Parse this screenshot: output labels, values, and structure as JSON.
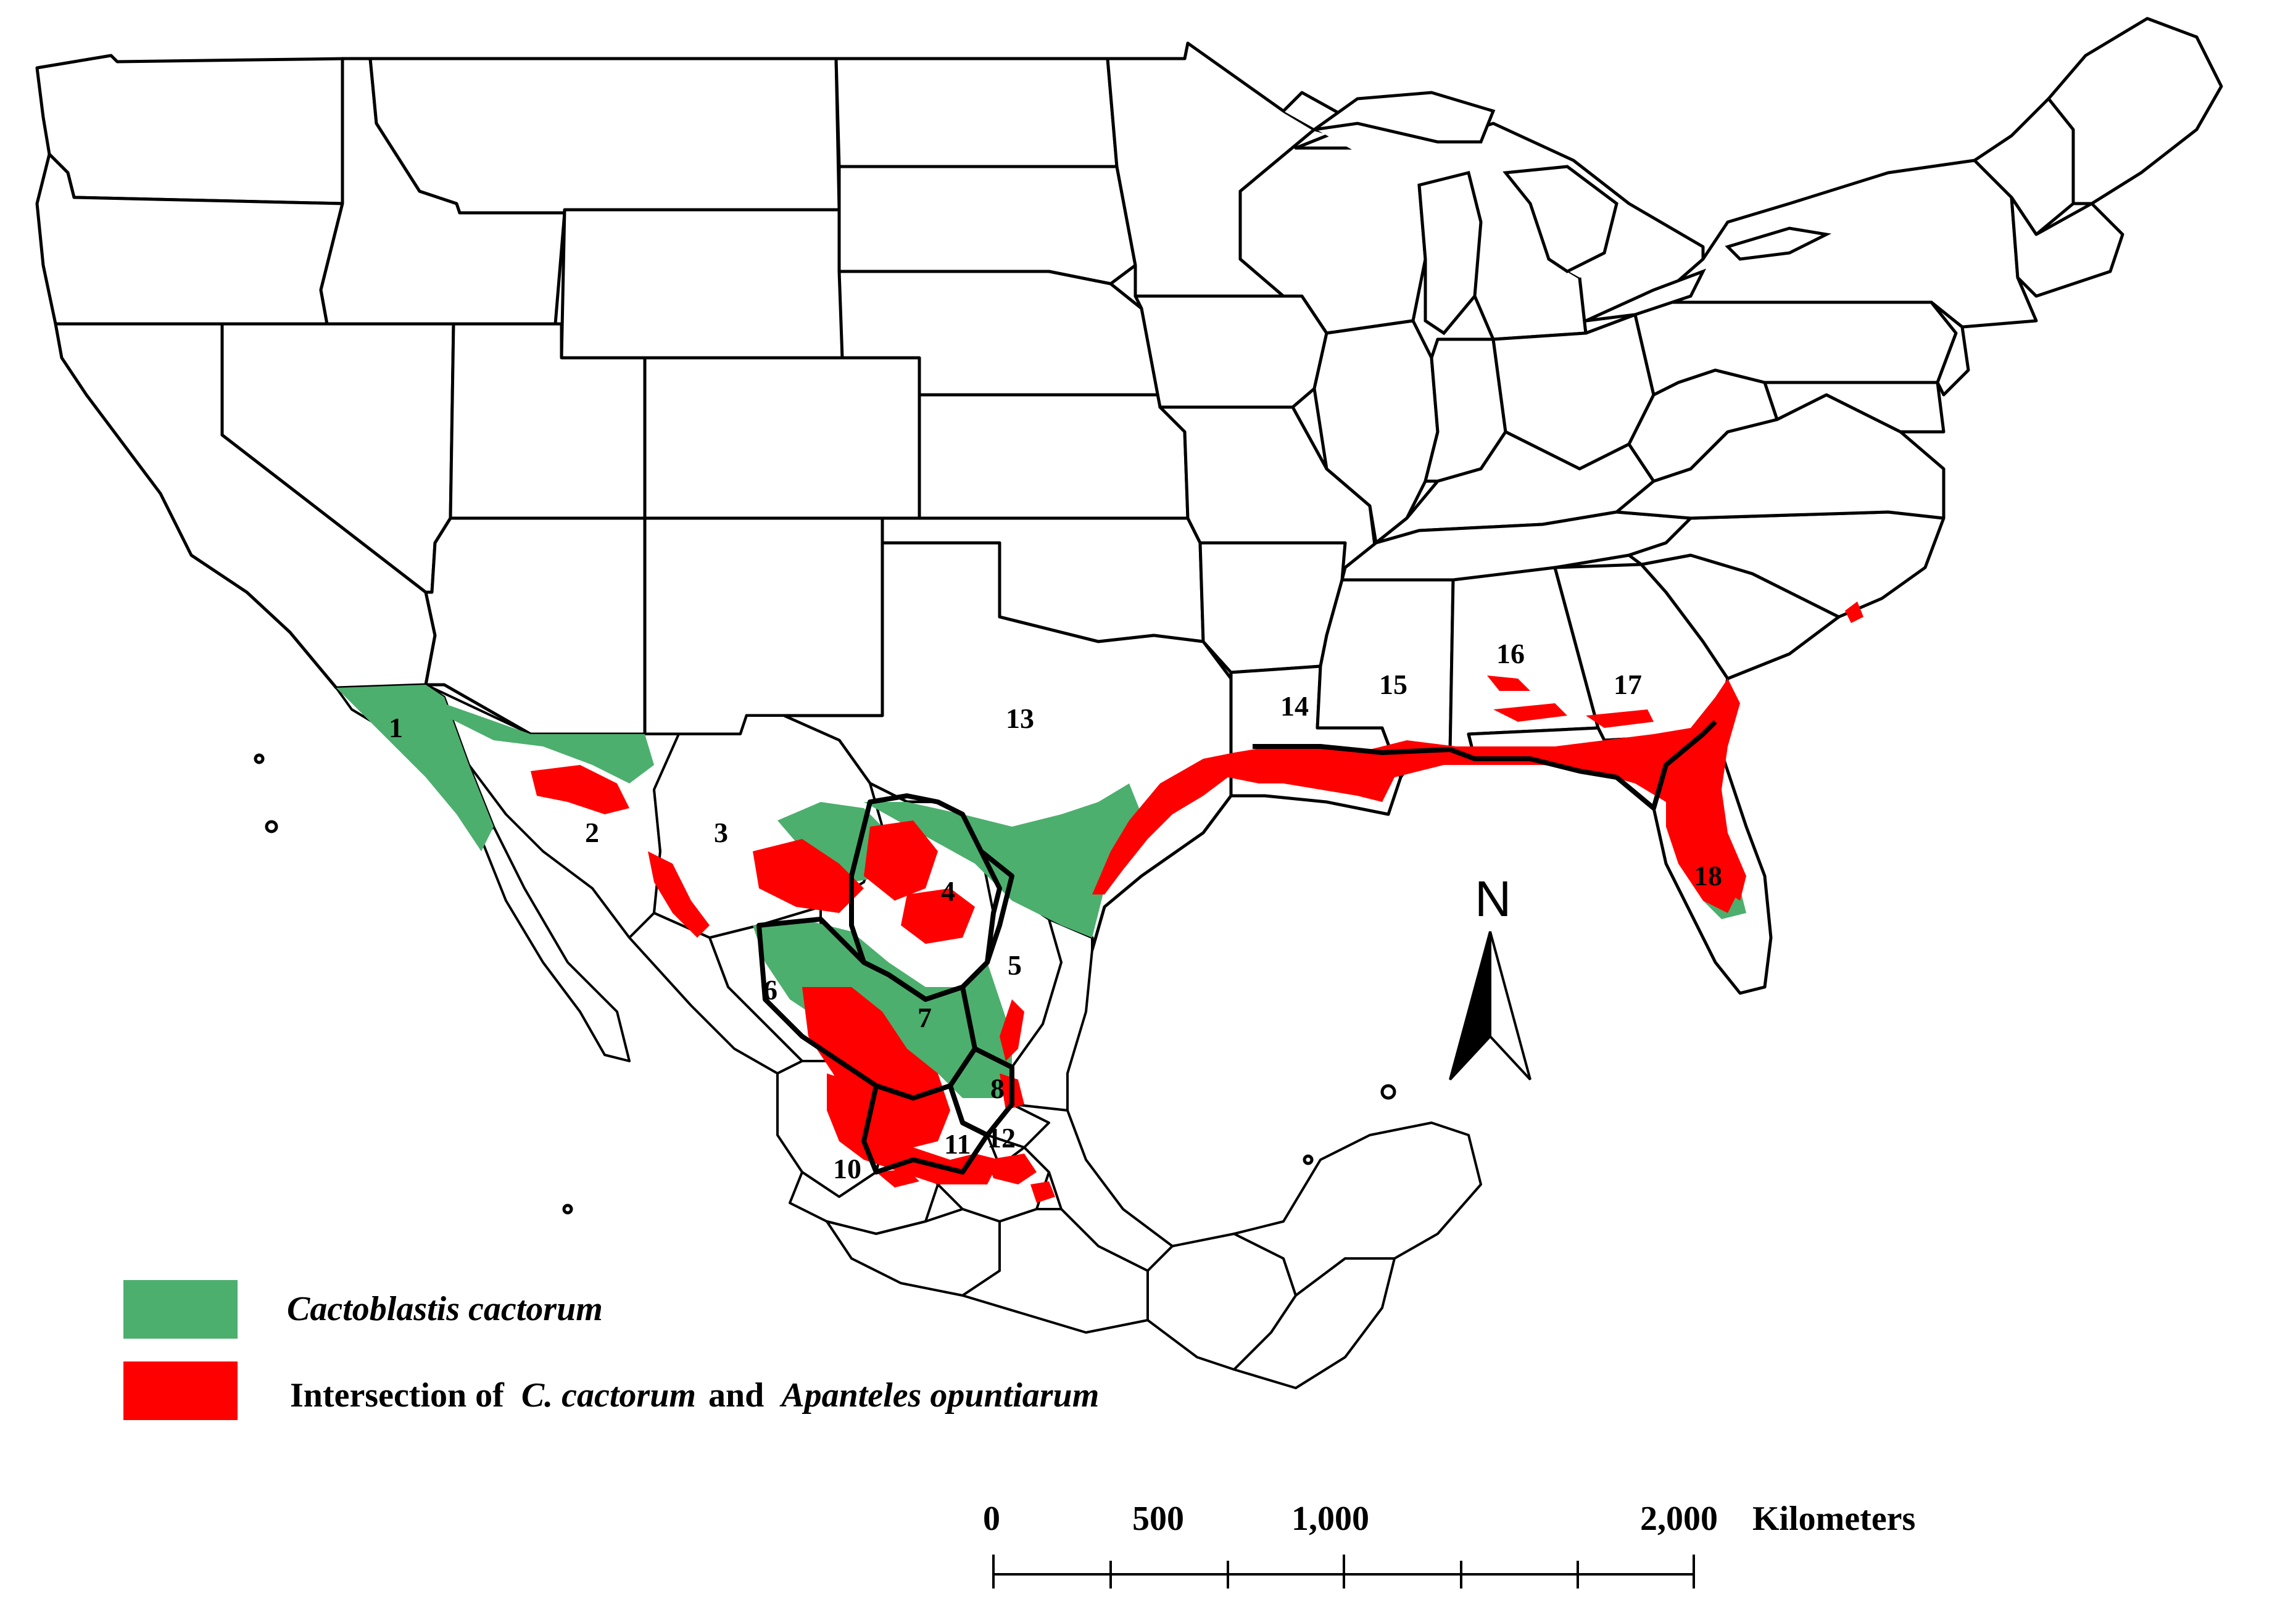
{
  "regions": [
    {
      "id": "1",
      "label": "1"
    },
    {
      "id": "2",
      "label": "2"
    },
    {
      "id": "3",
      "label": "3"
    },
    {
      "id": "4",
      "label": "4"
    },
    {
      "id": "5",
      "label": "5"
    },
    {
      "id": "6",
      "label": "6"
    },
    {
      "id": "7",
      "label": "7"
    },
    {
      "id": "8",
      "label": "8"
    },
    {
      "id": "10",
      "label": "10"
    },
    {
      "id": "11",
      "label": "11"
    },
    {
      "id": "12",
      "label": "12"
    },
    {
      "id": "13",
      "label": "13"
    },
    {
      "id": "14",
      "label": "14"
    },
    {
      "id": "15",
      "label": "15"
    },
    {
      "id": "16",
      "label": "16"
    },
    {
      "id": "17",
      "label": "17"
    },
    {
      "id": "18",
      "label": "18"
    }
  ],
  "legend": {
    "items": [
      {
        "color": "#4caf6e",
        "label_italic": "Cactoblastis cactorum"
      },
      {
        "color": "#ff0000",
        "label_prefix": "Intersection of ",
        "label_italic_1": "C. cactorum",
        "label_mid": " and ",
        "label_italic_2": "Apanteles opuntiarum"
      }
    ]
  },
  "north_arrow": {
    "label": "N"
  },
  "scale_bar": {
    "ticks": [
      "0",
      "500",
      "1,000",
      "2,000"
    ],
    "unit": "Kilometers"
  },
  "colors": {
    "cactoblastis": "#4caf6e",
    "intersection": "#ff0000",
    "boundary": "#000000"
  }
}
